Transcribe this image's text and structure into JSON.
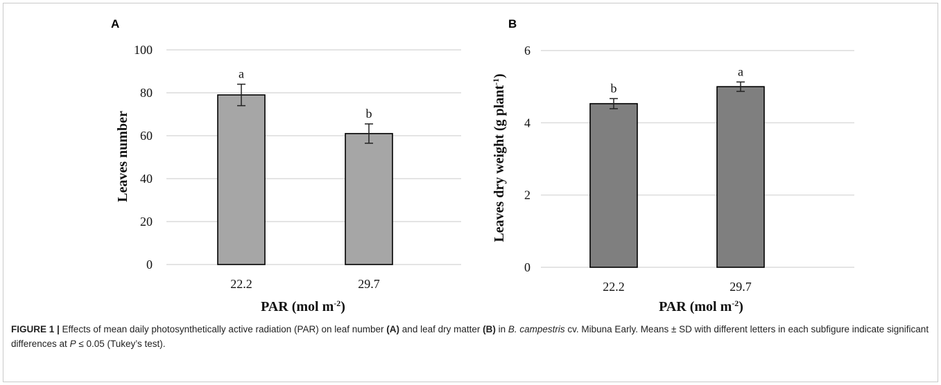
{
  "chart_data": [
    {
      "type": "bar",
      "panel": "A",
      "categories": [
        "22.2",
        "29.7"
      ],
      "values": [
        79.0,
        61.0
      ],
      "error": [
        5.0,
        4.5
      ],
      "significance": [
        "a",
        "b"
      ],
      "xlabel": "PAR (mol m-2)",
      "ylabel": "Leaves number",
      "ylim": [
        0,
        100
      ],
      "yticks": [
        "0",
        "20",
        "40",
        "60",
        "80",
        "100"
      ],
      "bar_color": "#a6a6a6",
      "grid": true
    },
    {
      "type": "bar",
      "panel": "B",
      "categories": [
        "22.2",
        "29.7"
      ],
      "values": [
        4.53,
        5.0
      ],
      "error": [
        0.14,
        0.13
      ],
      "significance": [
        "b",
        "a"
      ],
      "xlabel": "PAR (mol m-2)",
      "ylabel": "Leaves dry weight (g plant-1)",
      "ylim": [
        0,
        6
      ],
      "yticks": [
        "0",
        "2",
        "4",
        "6"
      ],
      "bar_color": "#7f7f7f",
      "grid": true
    }
  ],
  "axis_text": {
    "par_prefix": "PAR (mol m",
    "par_sup": "-2",
    "par_suffix": ")",
    "a_ylabel": "Leaves number",
    "b_ylabel_prefix": "Leaves dry weight (g plant",
    "b_ylabel_sup": "-1",
    "b_ylabel_suffix": ")"
  },
  "caption": {
    "lead": "FIGURE 1 |",
    "t1": " Effects of mean daily photosynthetically active radiation (PAR) on leaf number ",
    "b1": "(A)",
    "t2": " and leaf dry matter ",
    "b2": "(B)",
    "t3": " in ",
    "i1": "B. campestris",
    "t4": " cv. Mibuna Early. Means ± SD with different letters in each subfigure indicate significant differences at ",
    "i2": "P",
    "t5": " ≤ 0.05 (Tukey’s test)."
  }
}
